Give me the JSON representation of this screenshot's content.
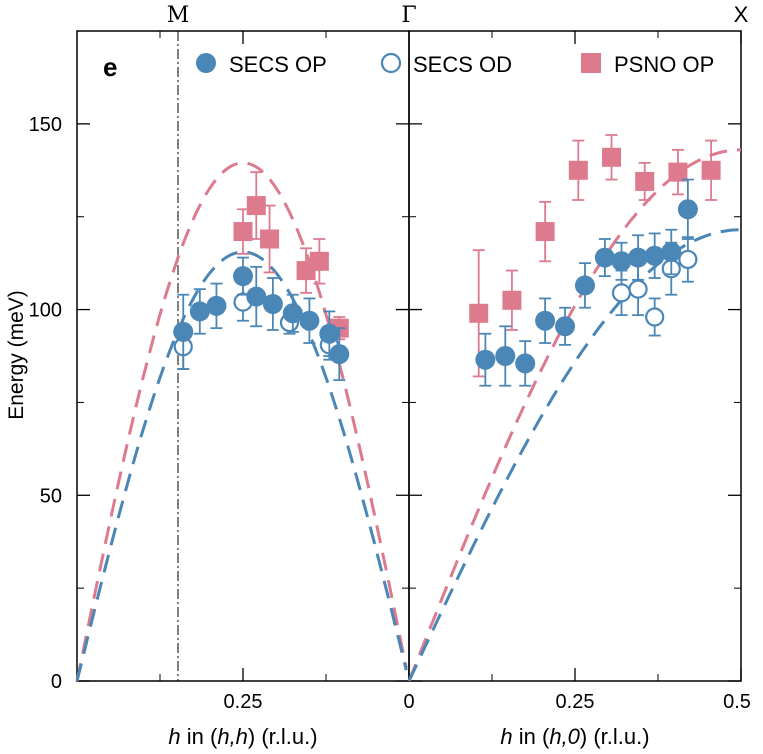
{
  "chart_data": {
    "type": "scatter",
    "panel_label": "e",
    "ylabel": "Energy (meV)",
    "ylim": [
      0,
      175
    ],
    "yticks": [
      0,
      50,
      100,
      150
    ],
    "top_labels": {
      "M": "M",
      "Gamma": "Γ",
      "X": "X"
    },
    "legend": {
      "secs_op": "SECS OP",
      "secs_od": "SECS OD",
      "psno_op": "PSNO OP"
    },
    "colors": {
      "blue": "#4a86b6",
      "pink": "#de7a8e"
    },
    "left_panel": {
      "xlabel_italic": "h",
      "xlabel_rest": " in (",
      "xlabel_args": "h,h",
      "xlabel_end": ") (r.l.u.)",
      "xtick_labels": [
        "0.25"
      ],
      "xlim": [
        0.5,
        0
      ],
      "series": {
        "secs_op": {
          "x": [
            0.34,
            0.315,
            0.29,
            0.25,
            0.23,
            0.205,
            0.175,
            0.15,
            0.12,
            0.105
          ],
          "y": [
            94,
            99.5,
            101,
            109,
            103.5,
            101.5,
            99,
            97,
            93.5,
            88
          ],
          "err": [
            10,
            6,
            6,
            5,
            8,
            7,
            5,
            6,
            6,
            7
          ]
        },
        "secs_od": {
          "x": [
            0.34,
            0.25,
            0.18,
            0.12
          ],
          "y": [
            90,
            102,
            96.5,
            90.5
          ],
          "err": [
            6,
            5,
            3,
            4
          ]
        },
        "psno_op": {
          "x": [
            0.25,
            0.23,
            0.21,
            0.155,
            0.135,
            0.105
          ],
          "y": [
            121,
            128,
            119,
            110.5,
            113,
            95
          ],
          "err": [
            6,
            9,
            9,
            6,
            6,
            3
          ]
        }
      },
      "theory_blue_peak": 115.5,
      "theory_pink_peak": 139.5
    },
    "right_panel": {
      "xlabel_italic": "h",
      "xlabel_rest": " in (",
      "xlabel_args": "h,0",
      "xlabel_end": ") (r.l.u.)",
      "xtick_labels": [
        "0",
        "0.25",
        "0.5"
      ],
      "xlim": [
        0,
        0.5
      ],
      "series": {
        "secs_op": {
          "x": [
            0.115,
            0.145,
            0.175,
            0.205,
            0.235,
            0.265,
            0.295,
            0.32,
            0.345,
            0.37,
            0.395,
            0.42
          ],
          "y": [
            86.5,
            87.5,
            85.5,
            97,
            95.5,
            106.5,
            114,
            113,
            114,
            114.5,
            115.5,
            127
          ],
          "err": [
            7,
            8,
            6,
            6,
            5,
            6,
            5,
            5,
            6,
            6,
            6,
            8
          ]
        },
        "secs_od": {
          "x": [
            0.32,
            0.345,
            0.37,
            0.395,
            0.42
          ],
          "y": [
            104.5,
            105.5,
            98,
            111,
            113.5
          ],
          "err": [
            6,
            7,
            5,
            7,
            6
          ]
        },
        "psno_op": {
          "x": [
            0.105,
            0.155,
            0.205,
            0.255,
            0.305,
            0.355,
            0.405,
            0.455
          ],
          "y": [
            99,
            102.5,
            121,
            137.5,
            141,
            134.5,
            137,
            137.5
          ],
          "err": [
            17,
            8,
            8,
            8,
            6,
            5,
            6,
            8
          ]
        }
      },
      "theory_blue_max": 121.5,
      "theory_pink_max": 143
    }
  }
}
